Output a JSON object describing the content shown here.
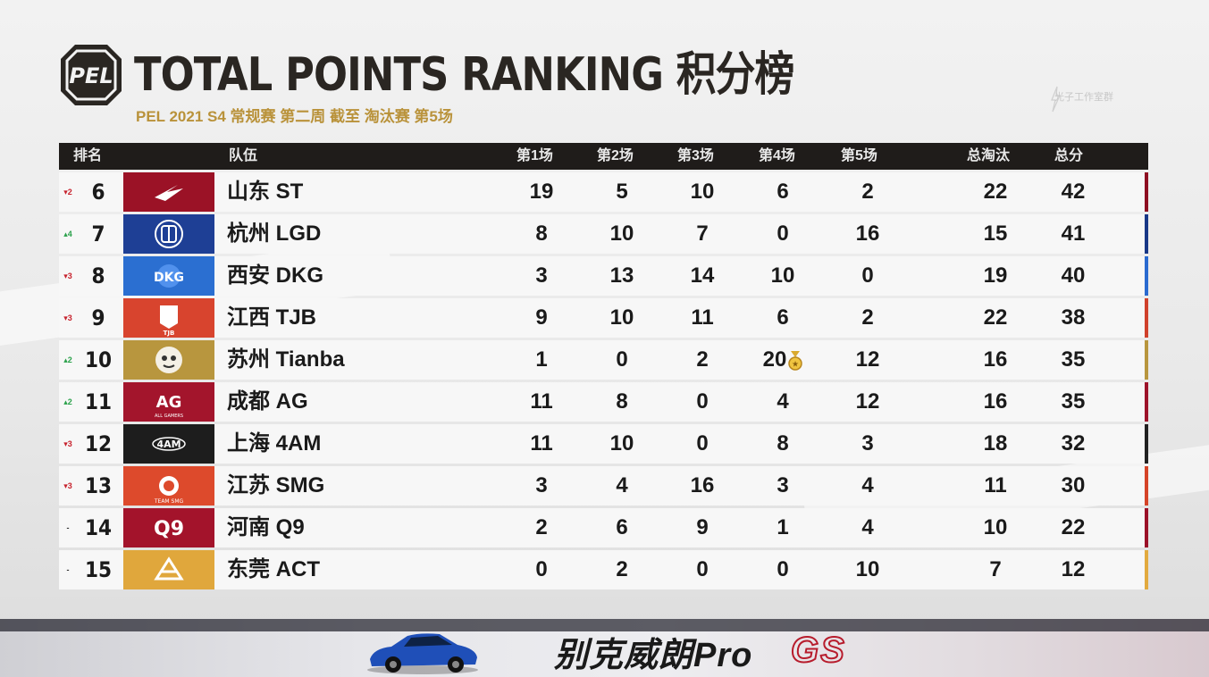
{
  "header": {
    "logo_text": "PEL",
    "title": "TOTAL POINTS RANKING 积分榜",
    "subtitle": "PEL 2021 S4 常规赛 第二周 截至 淘汰赛 第5场",
    "watermark": "光子工作室群"
  },
  "table": {
    "columns": {
      "rank": "排名",
      "team": "队伍",
      "m1": "第1场",
      "m2": "第2场",
      "m3": "第3场",
      "m4": "第4场",
      "m5": "第5场",
      "kills": "总淘汰",
      "total": "总分"
    },
    "rows": [
      {
        "change": "▾2",
        "dir": "down",
        "rank": "6",
        "team": "山东 ST",
        "logo": "st-logo",
        "logo_bg": "#9b1226",
        "accent": "#8e0f22",
        "m1": "19",
        "m2": "5",
        "m3": "10",
        "m4": "6",
        "m5": "2",
        "kills": "22",
        "total": "42"
      },
      {
        "change": "▴4",
        "dir": "up",
        "rank": "7",
        "team": "杭州 LGD",
        "logo": "lgd-logo",
        "logo_bg": "#1e3f95",
        "accent": "#183887",
        "m1": "8",
        "m2": "10",
        "m3": "7",
        "m4": "0",
        "m5": "16",
        "kills": "15",
        "total": "41"
      },
      {
        "change": "▾3",
        "dir": "down",
        "rank": "8",
        "team": "西安 DKG",
        "logo": "dkg-logo",
        "logo_bg": "#2b6fd1",
        "accent": "#2a6ad0",
        "m1": "3",
        "m2": "13",
        "m3": "14",
        "m4": "10",
        "m5": "0",
        "kills": "19",
        "total": "40"
      },
      {
        "change": "▾3",
        "dir": "down",
        "rank": "9",
        "team": "江西 TJB",
        "logo": "tjb-logo",
        "logo_bg": "#d8442e",
        "accent": "#d0412c",
        "m1": "9",
        "m2": "10",
        "m3": "11",
        "m4": "6",
        "m5": "2",
        "kills": "22",
        "total": "38"
      },
      {
        "change": "▴2",
        "dir": "up",
        "rank": "10",
        "team": "苏州 Tianba",
        "logo": "tianba-logo",
        "logo_bg": "#b8963e",
        "accent": "#b8963e",
        "m1": "1",
        "m2": "0",
        "m3": "2",
        "m4": "20",
        "m5": "12",
        "kills": "16",
        "total": "35",
        "medal": true
      },
      {
        "change": "▴2",
        "dir": "up",
        "rank": "11",
        "team": "成都 AG",
        "logo": "ag-logo",
        "logo_bg": "#a3152c",
        "accent": "#9d132a",
        "m1": "11",
        "m2": "8",
        "m3": "0",
        "m4": "4",
        "m5": "12",
        "kills": "16",
        "total": "35"
      },
      {
        "change": "▾3",
        "dir": "down",
        "rank": "12",
        "team": "上海 4AM",
        "logo": "4am-logo",
        "logo_bg": "#1d1d1d",
        "accent": "#222222",
        "m1": "11",
        "m2": "10",
        "m3": "0",
        "m4": "8",
        "m5": "3",
        "kills": "18",
        "total": "32"
      },
      {
        "change": "▾3",
        "dir": "down",
        "rank": "13",
        "team": "江苏 SMG",
        "logo": "smg-logo",
        "logo_bg": "#dd4a2c",
        "accent": "#d54428",
        "m1": "3",
        "m2": "4",
        "m3": "16",
        "m4": "3",
        "m5": "4",
        "kills": "11",
        "total": "30"
      },
      {
        "change": "-",
        "dir": "same",
        "rank": "14",
        "team": "河南 Q9",
        "logo": "q9-logo",
        "logo_bg": "#a3132b",
        "accent": "#9b1128",
        "m1": "2",
        "m2": "6",
        "m3": "9",
        "m4": "1",
        "m5": "4",
        "kills": "10",
        "total": "22"
      },
      {
        "change": "-",
        "dir": "same",
        "rank": "15",
        "team": "东莞 ACT",
        "logo": "act-logo",
        "logo_bg": "#e0a73c",
        "accent": "#e2aa3f",
        "m1": "0",
        "m2": "2",
        "m3": "0",
        "m4": "0",
        "m5": "10",
        "kills": "7",
        "total": "12"
      }
    ]
  },
  "banner": {
    "text": "别克威朗Pro",
    "brand": "GS",
    "car_icon": "car-icon"
  }
}
